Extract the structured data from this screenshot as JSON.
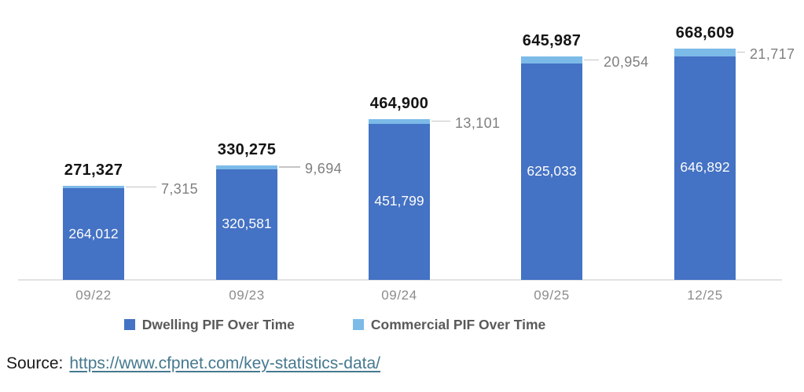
{
  "chart_data": {
    "type": "bar",
    "stacked": true,
    "categories": [
      "09/22",
      "09/23",
      "09/24",
      "09/25",
      "12/25"
    ],
    "series": [
      {
        "name": "Dwelling PIF Over Time",
        "color": "#4472C4",
        "values": [
          264012,
          320581,
          451799,
          625033,
          646892
        ],
        "labels": [
          "264,012",
          "320,581",
          "451,799",
          "625,033",
          "646,892"
        ],
        "label_color": "#FCFCFC"
      },
      {
        "name": "Commercial PIF Over Time",
        "color": "#7CBBE8",
        "values": [
          7315,
          9694,
          13101,
          20954,
          21717
        ],
        "labels": [
          "7,315",
          "9,694",
          "13,101",
          "20,954",
          "21,717"
        ],
        "label_color": "#7F7F7F"
      }
    ],
    "totals": [
      271327,
      330275,
      464900,
      645987,
      668609
    ],
    "total_labels": [
      "271,327",
      "330,275",
      "464,900",
      "645,987",
      "668,609"
    ],
    "total_label_color": "#141414",
    "axis_line_color": "#E2E2E2",
    "callout_line_color": "#C4C4C4",
    "x_label_color": "#8C8C8C",
    "legend_text_color": "#595959",
    "legend_position": "bottom",
    "grid": false,
    "ylim": [
      0,
      700000
    ]
  },
  "source": {
    "label": "Source:",
    "link_text": "https://www.cfpnet.com/key-statistics-data/",
    "link_color": "#46798F"
  }
}
